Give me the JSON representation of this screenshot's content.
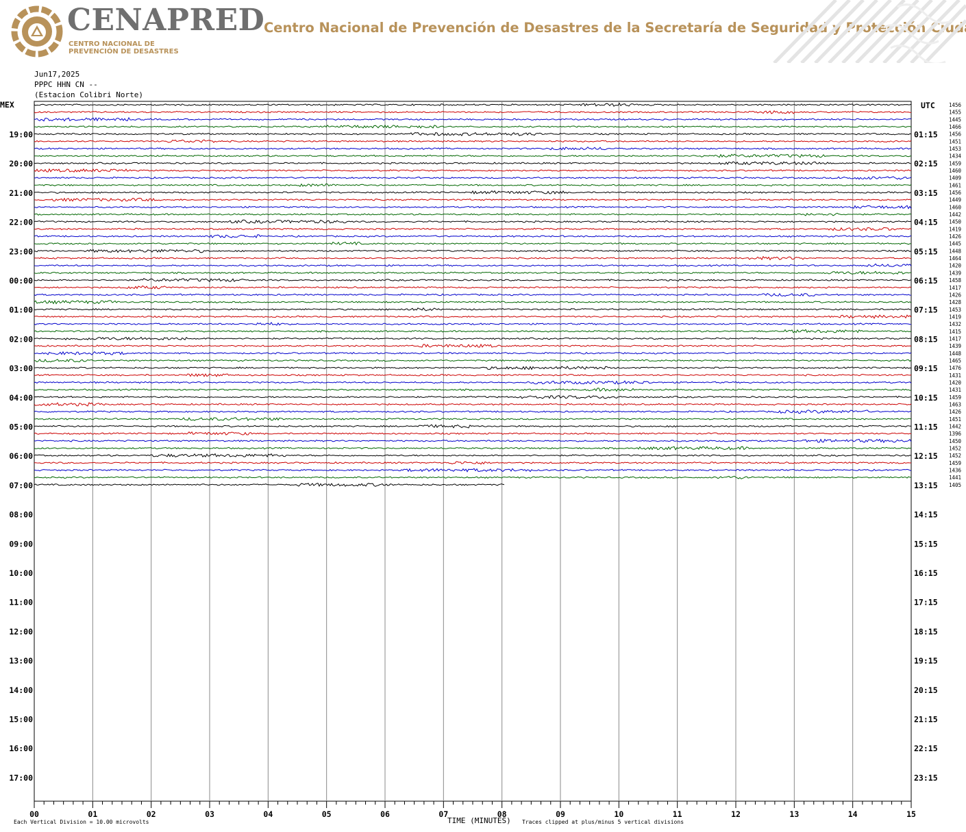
{
  "header": {
    "logo_text": "CENAPRED",
    "logo_subtitle_line1": "CENTRO NACIONAL DE",
    "logo_subtitle_line2": "PREVENCIÓN DE DESASTRES",
    "org_name": "Centro Nacional de Prevención de Desastres de la Secretaría de Seguridad y Protección Ciudadana",
    "brand_color": "#b8925a",
    "logo_gray": "#6f6f6f"
  },
  "station": {
    "date": "Jun17,2025",
    "channel": "PPPC HHN CN --",
    "name": "(Estacion Colibri Norte)"
  },
  "footer": {
    "scale_note": "Each Vertical Division =   10.00 microvolts",
    "clip_note": "Traces clipped at plus/minus 5 vertical divisions"
  },
  "chart_data": {
    "type": "line",
    "title": "",
    "xlabel": "TIME (MINUTES)",
    "left_axis_label": "MEX",
    "right_axis_label": "UTC",
    "xlim": [
      0,
      15
    ],
    "x_ticks": [
      "00",
      "01",
      "02",
      "03",
      "04",
      "05",
      "06",
      "07",
      "08",
      "09",
      "10",
      "11",
      "12",
      "13",
      "14",
      "15"
    ],
    "left_hour_labels": [
      "19:00",
      "20:00",
      "21:00",
      "22:00",
      "23:00",
      "00:00",
      "01:00",
      "02:00",
      "03:00",
      "04:00",
      "05:00",
      "06:00",
      "07:00",
      "08:00",
      "09:00",
      "10:00",
      "11:00",
      "12:00",
      "13:00",
      "14:00",
      "15:00",
      "16:00",
      "17:00"
    ],
    "right_hour_labels": [
      "01:15",
      "02:15",
      "03:15",
      "04:15",
      "05:15",
      "06:15",
      "07:15",
      "08:15",
      "09:15",
      "10:15",
      "11:15",
      "12:15",
      "13:15",
      "14:15",
      "15:15",
      "16:15",
      "17:15",
      "18:15",
      "19:15",
      "20:15",
      "21:15",
      "22:15",
      "23:15"
    ],
    "trace_colors": [
      "#000000",
      "#cc0000",
      "#0000cc",
      "#006600"
    ],
    "trace_interval_minutes": 15,
    "last_trace_end_minute": 8.05,
    "trace_counts": [
      "1456",
      "1455",
      "1445",
      "1466",
      "1456",
      "1451",
      "1453",
      "1434",
      "1459",
      "1460",
      "1409",
      "1461",
      "1456",
      "1449",
      "1460",
      "1442",
      "1450",
      "1419",
      "1426",
      "1445",
      "1448",
      "1464",
      "1420",
      "1439",
      "1458",
      "1417",
      "1426",
      "1428",
      "1453",
      "1419",
      "1432",
      "1415",
      "1417",
      "1439",
      "1448",
      "1465",
      "1476",
      "1431",
      "1420",
      "1431",
      "1459",
      "1463",
      "1426",
      "1451",
      "1442",
      "1396",
      "1450",
      "1452",
      "1452",
      "1459",
      "1436",
      "1441",
      "1405"
    ],
    "grid": true,
    "vertical_division_microvolts": 10.0,
    "clip_divisions": 5
  }
}
